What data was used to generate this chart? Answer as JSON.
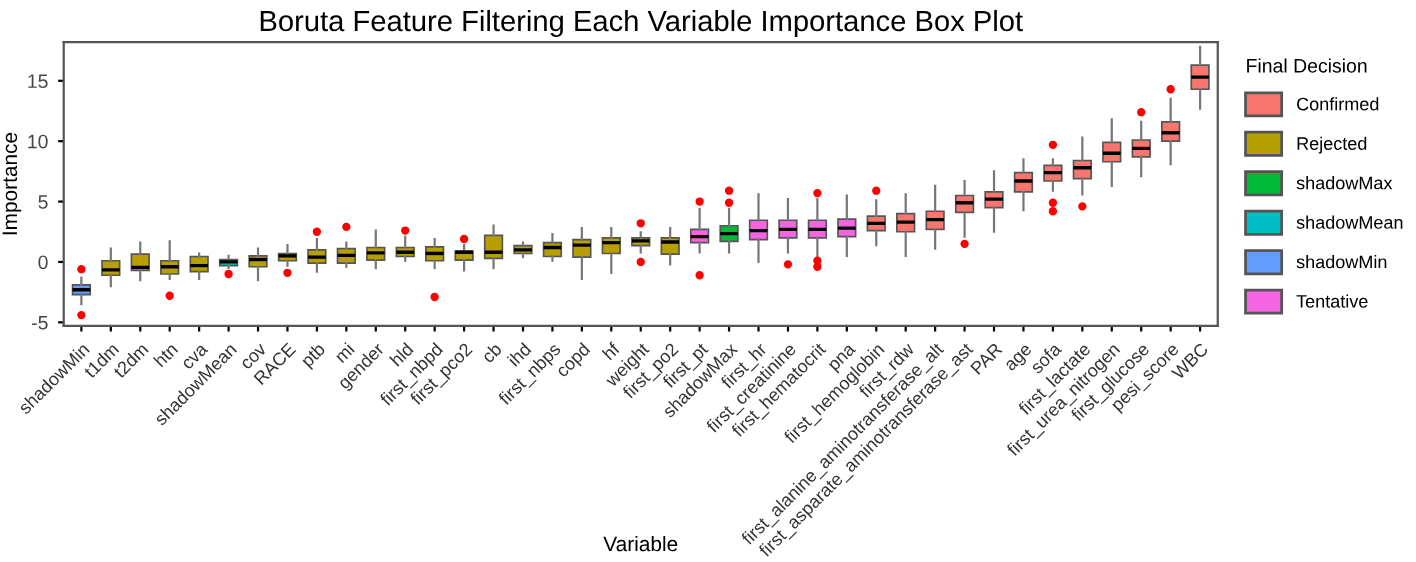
{
  "chart_data": {
    "type": "box",
    "title": "Boruta Feature Filtering Each Variable Importance Box Plot",
    "xlabel": "Variable",
    "ylabel": "Importance",
    "legend_title": "Final Decision",
    "legend": "right",
    "grid": false,
    "ylim": [
      -5.3,
      18.2
    ],
    "yticks": [
      -5,
      0,
      5,
      10,
      15
    ],
    "categories": [
      "shadowMin",
      "t1dm",
      "t2dm",
      "htn",
      "cva",
      "shadowMean",
      "cov",
      "RACE",
      "ptb",
      "mi",
      "gender",
      "hld",
      "first_nbpd",
      "first_pco2",
      "cb",
      "ihd",
      "first_nbps",
      "copd",
      "hf",
      "weight",
      "first_po2",
      "first_pt",
      "shadowMax",
      "first_hr",
      "first_creatinine",
      "first_hematocrit",
      "pna",
      "first_hemoglobin",
      "first_rdw",
      "first_alanine_aminotransferase_alt",
      "first_asparate_aminotransferase_ast",
      "PAR",
      "age",
      "sofa",
      "first_lactate",
      "first_urea_nitrogen",
      "first_glucose",
      "pesi_score",
      "WBC"
    ],
    "series": [
      {
        "name": "Confirmed",
        "color": "#f8766d",
        "boxes": [
          null,
          null,
          null,
          null,
          null,
          null,
          null,
          null,
          null,
          null,
          null,
          null,
          null,
          null,
          null,
          null,
          null,
          null,
          null,
          null,
          null,
          null,
          null,
          null,
          null,
          null,
          null,
          {
            "low": 1.4,
            "q1": 2.6,
            "median": 3.2,
            "q3": 3.8,
            "high": 5.1,
            "outliers": [
              5.9
            ]
          },
          {
            "low": 0.5,
            "q1": 2.5,
            "median": 3.3,
            "q3": 4.0,
            "high": 5.6
          },
          {
            "low": 1.1,
            "q1": 2.7,
            "median": 3.5,
            "q3": 4.2,
            "high": 6.3
          },
          {
            "low": 2.1,
            "q1": 4.1,
            "median": 4.9,
            "q3": 5.5,
            "high": 6.7,
            "outliers": [
              1.5
            ]
          },
          {
            "low": 2.5,
            "q1": 4.5,
            "median": 5.2,
            "q3": 5.8,
            "high": 7.5
          },
          {
            "low": 4.3,
            "q1": 5.8,
            "median": 6.7,
            "q3": 7.4,
            "high": 8.5
          },
          {
            "low": 5.9,
            "q1": 6.7,
            "median": 7.4,
            "q3": 8.0,
            "high": 8.5,
            "outliers": [
              9.7,
              4.9,
              4.2
            ]
          },
          {
            "low": 5.6,
            "q1": 6.9,
            "median": 7.8,
            "q3": 8.4,
            "high": 10.3,
            "outliers": [
              4.6
            ]
          },
          {
            "low": 6.3,
            "q1": 8.3,
            "median": 9.0,
            "q3": 9.9,
            "high": 11.8
          },
          {
            "low": 7.1,
            "q1": 8.7,
            "median": 9.4,
            "q3": 10.1,
            "high": 11.6,
            "outliers": [
              12.4
            ]
          },
          {
            "low": 8.1,
            "q1": 10.0,
            "median": 10.7,
            "q3": 11.6,
            "high": 13.5,
            "outliers": [
              14.3
            ]
          },
          {
            "low": 12.7,
            "q1": 14.3,
            "median": 15.3,
            "q3": 16.3,
            "high": 17.8
          }
        ]
      },
      {
        "name": "Rejected",
        "color": "#b79f00",
        "boxes": [
          null,
          {
            "low": -2.0,
            "q1": -1.1,
            "median": -0.65,
            "q3": 0.1,
            "high": 1.1
          },
          {
            "low": -1.5,
            "q1": -0.7,
            "median": -0.45,
            "q3": 0.65,
            "high": 1.6
          },
          {
            "low": -1.4,
            "q1": -1.0,
            "median": -0.4,
            "q3": 0.1,
            "high": 1.7,
            "outliers": [
              -2.8
            ]
          },
          {
            "low": -1.4,
            "q1": -0.8,
            "median": -0.3,
            "q3": 0.45,
            "high": 0.7
          },
          null,
          {
            "low": -1.5,
            "q1": -0.4,
            "median": 0.2,
            "q3": 0.5,
            "high": 1.1
          },
          {
            "low": -0.3,
            "q1": 0.1,
            "median": 0.5,
            "q3": 0.7,
            "high": 1.4,
            "outliers": [
              -0.9
            ]
          },
          {
            "low": -0.8,
            "q1": -0.1,
            "median": 0.4,
            "q3": 1.0,
            "high": 1.9,
            "outliers": [
              2.5
            ]
          },
          {
            "low": -0.4,
            "q1": -0.1,
            "median": 0.55,
            "q3": 1.1,
            "high": 1.6,
            "outliers": [
              2.9
            ]
          },
          {
            "low": -0.5,
            "q1": 0.15,
            "median": 0.75,
            "q3": 1.2,
            "high": 2.6
          },
          {
            "low": 0.1,
            "q1": 0.45,
            "median": 0.8,
            "q3": 1.2,
            "high": 2.1,
            "outliers": [
              2.6
            ]
          },
          {
            "low": -0.5,
            "q1": 0.1,
            "median": 0.7,
            "q3": 1.25,
            "high": 1.9,
            "outliers": [
              -2.9
            ]
          },
          {
            "low": -0.7,
            "q1": 0.15,
            "median": 0.8,
            "q3": 0.9,
            "high": 1.4,
            "outliers": [
              1.9
            ]
          },
          {
            "low": -0.5,
            "q1": 0.3,
            "median": 0.8,
            "q3": 2.2,
            "high": 3.0
          },
          {
            "low": 0.4,
            "q1": 0.7,
            "median": 1.0,
            "q3": 1.35,
            "high": 1.6
          },
          {
            "low": 0.1,
            "q1": 0.45,
            "median": 1.2,
            "q3": 1.6,
            "high": 2.3
          },
          {
            "low": -1.4,
            "q1": 0.4,
            "median": 1.4,
            "q3": 1.85,
            "high": 2.8
          },
          {
            "low": -0.9,
            "q1": 0.7,
            "median": 1.6,
            "q3": 2.0,
            "high": 2.8
          },
          {
            "low": 0.8,
            "q1": 1.35,
            "median": 1.75,
            "q3": 2.0,
            "high": 2.45,
            "outliers": [
              3.2,
              0.0
            ]
          },
          {
            "low": -0.2,
            "q1": 0.65,
            "median": 1.65,
            "q3": 2.0,
            "high": 2.8
          },
          null,
          null,
          null,
          null,
          null,
          null,
          null,
          null,
          null,
          null,
          null,
          null,
          null,
          null,
          null,
          null,
          null,
          null
        ]
      },
      {
        "name": "shadowMax",
        "color": "#00ba38",
        "boxes": [
          null,
          null,
          null,
          null,
          null,
          null,
          null,
          null,
          null,
          null,
          null,
          null,
          null,
          null,
          null,
          null,
          null,
          null,
          null,
          null,
          null,
          null,
          {
            "low": 0.8,
            "q1": 1.7,
            "median": 2.35,
            "q3": 3.0,
            "high": 4.4,
            "outliers": [
              5.9,
              4.9
            ]
          },
          null,
          null,
          null,
          null,
          null,
          null,
          null,
          null,
          null,
          null,
          null,
          null,
          null,
          null,
          null,
          null
        ]
      },
      {
        "name": "shadowMean",
        "color": "#00bfc4",
        "boxes": [
          null,
          null,
          null,
          null,
          null,
          {
            "low": -0.5,
            "q1": -0.3,
            "median": 0.0,
            "q3": 0.2,
            "high": 0.5,
            "outliers": [
              -1.0
            ]
          },
          null,
          null,
          null,
          null,
          null,
          null,
          null,
          null,
          null,
          null,
          null,
          null,
          null,
          null,
          null,
          null,
          null,
          null,
          null,
          null,
          null,
          null,
          null,
          null,
          null,
          null,
          null,
          null,
          null,
          null,
          null,
          null,
          null
        ]
      },
      {
        "name": "shadowMin",
        "color": "#619cff",
        "boxes": [
          {
            "low": -3.5,
            "q1": -2.7,
            "median": -2.3,
            "q3": -1.9,
            "high": -1.3,
            "outliers": [
              -0.6,
              -4.4
            ]
          },
          null,
          null,
          null,
          null,
          null,
          null,
          null,
          null,
          null,
          null,
          null,
          null,
          null,
          null,
          null,
          null,
          null,
          null,
          null,
          null,
          null,
          null,
          null,
          null,
          null,
          null,
          null,
          null,
          null,
          null,
          null,
          null,
          null,
          null,
          null,
          null,
          null,
          null
        ]
      },
      {
        "name": "Tentative",
        "color": "#f564e3",
        "boxes": [
          null,
          null,
          null,
          null,
          null,
          null,
          null,
          null,
          null,
          null,
          null,
          null,
          null,
          null,
          null,
          null,
          null,
          null,
          null,
          null,
          null,
          {
            "low": 0.8,
            "q1": 1.6,
            "median": 2.1,
            "q3": 2.7,
            "high": 4.4,
            "outliers": [
              5.0,
              -1.1
            ]
          },
          null,
          {
            "low": 0.0,
            "q1": 1.85,
            "median": 2.6,
            "q3": 3.45,
            "high": 5.6
          },
          {
            "low": 0.8,
            "q1": 2.0,
            "median": 2.7,
            "q3": 3.45,
            "high": 5.2,
            "outliers": [
              -0.2
            ]
          },
          {
            "low": 0.5,
            "q1": 2.0,
            "median": 2.7,
            "q3": 3.45,
            "high": 5.2,
            "outliers": [
              5.7,
              0.1,
              -0.4
            ]
          },
          {
            "low": 0.5,
            "q1": 2.1,
            "median": 2.8,
            "q3": 3.55,
            "high": 5.5
          },
          null,
          null,
          null,
          null,
          null,
          null,
          null,
          null,
          null,
          null,
          null,
          null
        ]
      }
    ]
  }
}
